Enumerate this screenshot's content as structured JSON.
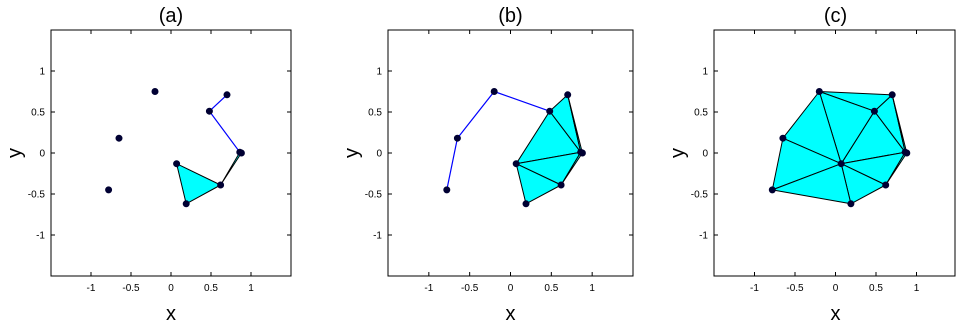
{
  "diagram": {
    "panels": [
      {
        "id": "a",
        "title": "(a)",
        "xlabel": "x",
        "ylabel": "y",
        "xticks": [
          "-1",
          "-0.5",
          "0",
          "0.5",
          "1"
        ],
        "yticks": [
          "1",
          "0.5",
          "0",
          "-0.5",
          "-1"
        ],
        "points": [
          [
            -0.2,
            0.75
          ],
          [
            0.7,
            0.71
          ],
          [
            0.48,
            0.51
          ],
          [
            -0.65,
            0.18
          ],
          [
            0.86,
            0.01
          ],
          [
            0.88,
            0.0
          ],
          [
            0.07,
            -0.13
          ],
          [
            0.62,
            -0.39
          ],
          [
            -0.78,
            -0.45
          ],
          [
            0.19,
            -0.62
          ]
        ],
        "path": [
          [
            0.7,
            0.71
          ],
          [
            0.48,
            0.51
          ],
          [
            0.86,
            0.01
          ],
          [
            0.88,
            0.0
          ]
        ],
        "triangles": [
          [
            [
              0.07,
              -0.13
            ],
            [
              0.62,
              -0.39
            ],
            [
              0.19,
              -0.62
            ]
          ],
          [
            [
              0.62,
              -0.39
            ],
            [
              0.86,
              0.01
            ],
            [
              0.88,
              0.0
            ]
          ]
        ]
      },
      {
        "id": "b",
        "title": "(b)",
        "xlabel": "x",
        "ylabel": "y",
        "xticks": [
          "-1",
          "-0.5",
          "0",
          "0.5",
          "1"
        ],
        "yticks": [
          "1",
          "0.5",
          "0",
          "-0.5",
          "-1"
        ],
        "points": [
          [
            -0.2,
            0.75
          ],
          [
            0.7,
            0.71
          ],
          [
            0.48,
            0.51
          ],
          [
            -0.65,
            0.18
          ],
          [
            0.86,
            0.01
          ],
          [
            0.88,
            0.0
          ],
          [
            0.07,
            -0.13
          ],
          [
            0.62,
            -0.39
          ],
          [
            -0.78,
            -0.45
          ],
          [
            0.19,
            -0.62
          ]
        ],
        "path": [
          [
            -0.78,
            -0.45
          ],
          [
            -0.65,
            0.18
          ],
          [
            -0.2,
            0.75
          ],
          [
            0.48,
            0.51
          ]
        ],
        "triangles": [
          [
            [
              0.07,
              -0.13
            ],
            [
              0.48,
              0.51
            ],
            [
              0.86,
              0.01
            ]
          ],
          [
            [
              0.48,
              0.51
            ],
            [
              0.7,
              0.71
            ],
            [
              0.86,
              0.01
            ]
          ],
          [
            [
              0.7,
              0.71
            ],
            [
              0.86,
              0.01
            ],
            [
              0.88,
              0.0
            ]
          ],
          [
            [
              0.07,
              -0.13
            ],
            [
              0.86,
              0.01
            ],
            [
              0.62,
              -0.39
            ]
          ],
          [
            [
              0.62,
              -0.39
            ],
            [
              0.86,
              0.01
            ],
            [
              0.88,
              0.0
            ]
          ],
          [
            [
              0.07,
              -0.13
            ],
            [
              0.62,
              -0.39
            ],
            [
              0.19,
              -0.62
            ]
          ]
        ]
      },
      {
        "id": "c",
        "title": "(c)",
        "xlabel": "x",
        "ylabel": "y",
        "xticks": [
          "-1",
          "-0.5",
          "0",
          "0.5",
          "1"
        ],
        "yticks": [
          "1",
          "0.5",
          "0",
          "-0.5",
          "-1"
        ],
        "points": [
          [
            -0.2,
            0.75
          ],
          [
            0.7,
            0.71
          ],
          [
            0.48,
            0.51
          ],
          [
            -0.65,
            0.18
          ],
          [
            0.86,
            0.01
          ],
          [
            0.88,
            0.0
          ],
          [
            0.07,
            -0.13
          ],
          [
            0.62,
            -0.39
          ],
          [
            -0.78,
            -0.45
          ],
          [
            0.19,
            -0.62
          ]
        ],
        "path": [],
        "triangles": [
          [
            [
              0.07,
              -0.13
            ],
            [
              0.48,
              0.51
            ],
            [
              0.86,
              0.01
            ]
          ],
          [
            [
              0.48,
              0.51
            ],
            [
              0.7,
              0.71
            ],
            [
              0.86,
              0.01
            ]
          ],
          [
            [
              0.7,
              0.71
            ],
            [
              0.86,
              0.01
            ],
            [
              0.88,
              0.0
            ]
          ],
          [
            [
              0.07,
              -0.13
            ],
            [
              0.86,
              0.01
            ],
            [
              0.62,
              -0.39
            ]
          ],
          [
            [
              0.62,
              -0.39
            ],
            [
              0.86,
              0.01
            ],
            [
              0.88,
              0.0
            ]
          ],
          [
            [
              0.07,
              -0.13
            ],
            [
              0.62,
              -0.39
            ],
            [
              0.19,
              -0.62
            ]
          ],
          [
            [
              -0.2,
              0.75
            ],
            [
              0.48,
              0.51
            ],
            [
              0.7,
              0.71
            ]
          ],
          [
            [
              -0.2,
              0.75
            ],
            [
              0.07,
              -0.13
            ],
            [
              0.48,
              0.51
            ]
          ],
          [
            [
              -0.65,
              0.18
            ],
            [
              -0.2,
              0.75
            ],
            [
              0.07,
              -0.13
            ]
          ],
          [
            [
              -0.78,
              -0.45
            ],
            [
              -0.65,
              0.18
            ],
            [
              0.07,
              -0.13
            ]
          ],
          [
            [
              -0.78,
              -0.45
            ],
            [
              0.07,
              -0.13
            ],
            [
              0.19,
              -0.62
            ]
          ]
        ]
      }
    ],
    "colors": {
      "fill": "#00ffff",
      "edge": "#000000",
      "path": "#0000ff",
      "point": "#000033"
    }
  }
}
